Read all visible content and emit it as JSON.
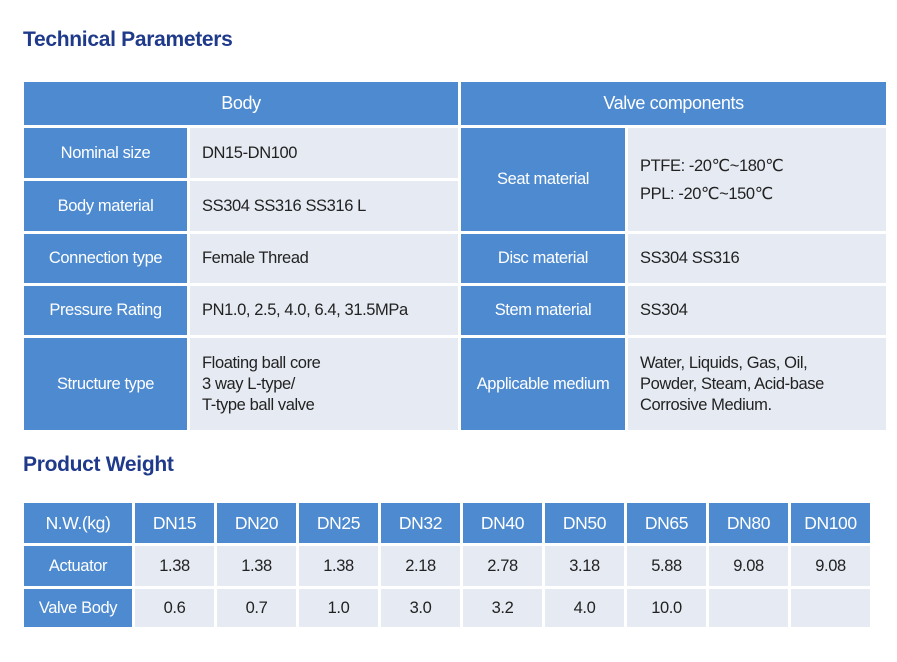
{
  "technical": {
    "title": "Technical Parameters",
    "headers": {
      "left": "Body",
      "right": "Valve components"
    },
    "body_rows": [
      {
        "label": "Nominal size",
        "value": "DN15-DN100"
      },
      {
        "label": "Body material",
        "value": "SS304  SS316  SS316 L"
      },
      {
        "label": "Connection type",
        "value": "Female Thread"
      },
      {
        "label": "Pressure Rating",
        "value": "PN1.0, 2.5, 4.0, 6.4, 31.5MPa"
      },
      {
        "label": "Structure type",
        "lines": [
          "Floating ball core",
          "3 way L-type/",
          "T-type ball valve"
        ]
      }
    ],
    "components": {
      "seat": {
        "label": "Seat material",
        "lines": [
          "PTFE: -20℃~180℃",
          "PPL: -20℃~150℃"
        ]
      },
      "disc": {
        "label": "Disc material",
        "value": "SS304  SS316"
      },
      "stem": {
        "label": "Stem material",
        "value": "SS304"
      },
      "medium": {
        "label": "Applicable medium",
        "lines": [
          "Water, Liquids, Gas, Oil,",
          "Powder, Steam, Acid-base",
          "Corrosive Medium."
        ]
      }
    }
  },
  "weight": {
    "title": "Product Weight",
    "header_label": "N.W.(kg)",
    "sizes": [
      "DN15",
      "DN20",
      "DN25",
      "DN32",
      "DN40",
      "DN50",
      "DN65",
      "DN80",
      "DN100"
    ],
    "rows": [
      {
        "label": "Actuator",
        "values": [
          "1.38",
          "1.38",
          "1.38",
          "2.18",
          "2.78",
          "3.18",
          "5.88",
          "9.08",
          "9.08"
        ]
      },
      {
        "label": "Valve Body",
        "values": [
          "0.6",
          "0.7",
          "1.0",
          "3.0",
          "3.2",
          "4.0",
          "10.0",
          "",
          ""
        ]
      }
    ]
  }
}
